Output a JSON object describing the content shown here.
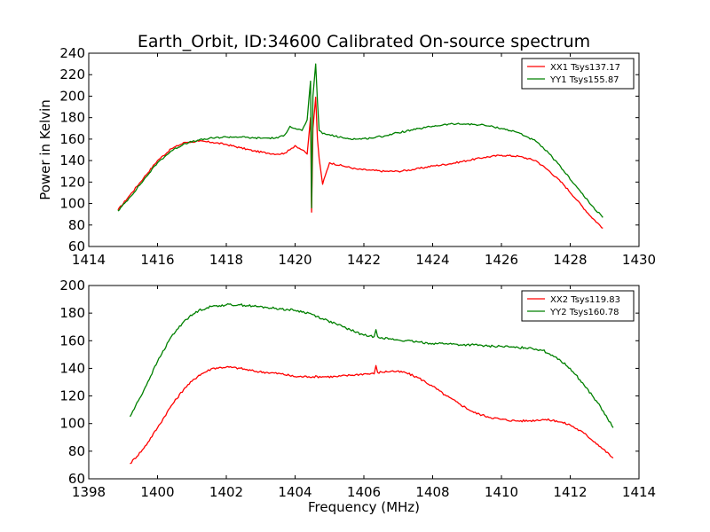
{
  "chart_data": [
    {
      "type": "line",
      "title": "Earth_Orbit, ID:34600 Calibrated On-source spectrum",
      "xlabel": "",
      "ylabel": "Power in Kelvin",
      "xlim": [
        1414,
        1430
      ],
      "ylim": [
        60,
        240
      ],
      "xticks": [
        "1414",
        "1416",
        "1418",
        "1420",
        "1422",
        "1424",
        "1426",
        "1428",
        "1430"
      ],
      "yticks": [
        "60",
        "80",
        "100",
        "120",
        "140",
        "160",
        "180",
        "200",
        "220",
        "240"
      ],
      "legend_position": "top-right",
      "grid": false,
      "series": [
        {
          "name": "XX1 Tsys137.17",
          "color": "#ff0000",
          "x": [
            1414.85,
            1415.2,
            1415.6,
            1416.0,
            1416.4,
            1416.8,
            1417.2,
            1417.6,
            1418.0,
            1418.4,
            1418.8,
            1419.2,
            1419.5,
            1419.7,
            1419.85,
            1420.0,
            1420.2,
            1420.35,
            1420.45,
            1420.48,
            1420.52,
            1420.6,
            1420.65,
            1420.7,
            1420.8,
            1421.0,
            1421.4,
            1421.8,
            1422.2,
            1422.6,
            1423.0,
            1423.5,
            1424.0,
            1424.5,
            1425.0,
            1425.5,
            1426.0,
            1426.5,
            1427.0,
            1427.4,
            1427.8,
            1428.2,
            1428.6,
            1428.95
          ],
          "y": [
            94,
            108,
            124,
            140,
            151,
            157,
            158,
            157,
            155,
            152,
            149,
            147,
            146,
            147,
            150,
            154,
            150,
            146,
            180,
            92,
            170,
            199,
            160,
            142,
            118,
            138,
            135,
            132,
            131,
            130,
            130,
            132,
            135,
            137,
            140,
            143,
            145,
            144,
            140,
            130,
            118,
            103,
            88,
            77
          ]
        },
        {
          "name": "YY1 Tsys155.87",
          "color": "#008000",
          "x": [
            1414.85,
            1415.2,
            1415.6,
            1416.0,
            1416.4,
            1416.8,
            1417.2,
            1417.6,
            1418.0,
            1418.4,
            1418.8,
            1419.2,
            1419.5,
            1419.7,
            1419.85,
            1420.0,
            1420.2,
            1420.35,
            1420.45,
            1420.48,
            1420.52,
            1420.6,
            1420.65,
            1420.7,
            1420.8,
            1421.0,
            1421.4,
            1421.8,
            1422.2,
            1422.6,
            1423.0,
            1423.5,
            1424.0,
            1424.5,
            1425.0,
            1425.5,
            1426.0,
            1426.5,
            1427.0,
            1427.4,
            1427.8,
            1428.2,
            1428.6,
            1428.95
          ],
          "y": [
            93,
            106,
            122,
            138,
            149,
            156,
            159,
            161,
            162,
            162,
            161,
            161,
            161,
            164,
            172,
            170,
            168,
            178,
            214,
            96,
            200,
            230,
            195,
            168,
            165,
            164,
            161,
            160,
            161,
            163,
            166,
            169,
            172,
            174,
            174,
            173,
            170,
            166,
            158,
            146,
            131,
            115,
            99,
            87
          ]
        }
      ]
    },
    {
      "type": "line",
      "title": "",
      "xlabel": "Frequency (MHz)",
      "ylabel": "",
      "xlim": [
        1398,
        1414
      ],
      "ylim": [
        60,
        200
      ],
      "xticks": [
        "1398",
        "1400",
        "1402",
        "1404",
        "1406",
        "1408",
        "1410",
        "1412",
        "1414"
      ],
      "yticks": [
        "60",
        "80",
        "100",
        "120",
        "140",
        "160",
        "180",
        "200"
      ],
      "legend_position": "top-right",
      "grid": false,
      "series": [
        {
          "name": "XX2 Tsys119.83",
          "color": "#ff0000",
          "x": [
            1399.2,
            1399.6,
            1400.0,
            1400.4,
            1400.8,
            1401.2,
            1401.6,
            1402.0,
            1402.4,
            1402.8,
            1403.2,
            1403.6,
            1404.0,
            1404.4,
            1404.8,
            1405.2,
            1405.6,
            1406.0,
            1406.3,
            1406.35,
            1406.4,
            1406.8,
            1407.2,
            1407.6,
            1408.0,
            1408.4,
            1408.8,
            1409.2,
            1409.6,
            1410.0,
            1410.4,
            1410.8,
            1411.2,
            1411.6,
            1412.0,
            1412.4,
            1412.8,
            1413.25
          ],
          "y": [
            71,
            82,
            97,
            113,
            126,
            135,
            140,
            141,
            140,
            138,
            137,
            136,
            134,
            134,
            134,
            134,
            135,
            136,
            136,
            142,
            137,
            138,
            137,
            133,
            127,
            120,
            114,
            108,
            105,
            103,
            102,
            102,
            103,
            102,
            99,
            93,
            85,
            75
          ]
        },
        {
          "name": "YY2 Tsys160.78",
          "color": "#008000",
          "x": [
            1399.2,
            1399.6,
            1400.0,
            1400.4,
            1400.8,
            1401.2,
            1401.6,
            1402.0,
            1402.4,
            1402.8,
            1403.2,
            1403.6,
            1404.0,
            1404.4,
            1404.8,
            1405.2,
            1405.6,
            1406.0,
            1406.3,
            1406.35,
            1406.4,
            1406.8,
            1407.2,
            1407.6,
            1408.0,
            1408.4,
            1408.8,
            1409.2,
            1409.6,
            1410.0,
            1410.4,
            1410.8,
            1411.2,
            1411.6,
            1412.0,
            1412.4,
            1412.8,
            1413.25
          ],
          "y": [
            105,
            124,
            145,
            163,
            175,
            182,
            185,
            186,
            186,
            185,
            184,
            183,
            182,
            180,
            176,
            172,
            168,
            164,
            163,
            168,
            163,
            161,
            160,
            159,
            158,
            158,
            157,
            157,
            156,
            156,
            155,
            155,
            153,
            148,
            140,
            128,
            115,
            97
          ]
        }
      ]
    }
  ]
}
